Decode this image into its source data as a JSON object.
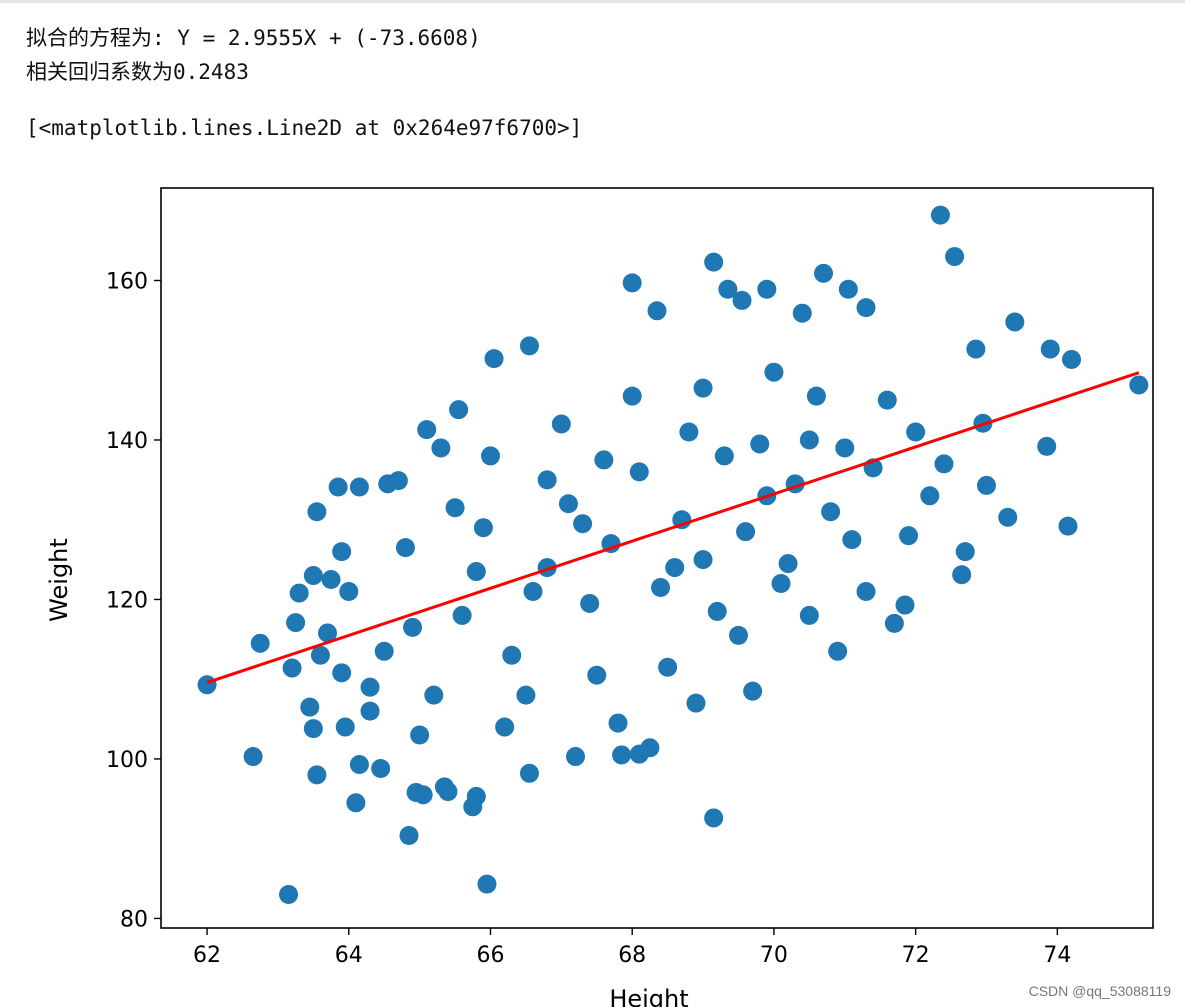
{
  "output": {
    "equation_line": "拟合的方程为: Y = 2.9555X + (-73.6608)",
    "corr_line": "相关回归系数为0.2483",
    "repr_line": "[<matplotlib.lines.Line2D at 0x264e97f6700>]"
  },
  "watermark": "CSDN @qq_53088119",
  "chart_data": {
    "type": "scatter",
    "xlabel": "Height",
    "ylabel": "Weight",
    "xlim": [
      61.35,
      75.35
    ],
    "ylim": [
      78.8,
      171.6
    ],
    "xticks": [
      62,
      64,
      66,
      68,
      70,
      72,
      74
    ],
    "yticks": [
      80,
      100,
      120,
      140,
      160
    ],
    "grid": false,
    "colors": {
      "points": "#1f77b4",
      "fit_line": "#ff0000"
    },
    "points": [
      [
        62.0,
        109.3
      ],
      [
        62.65,
        100.3
      ],
      [
        62.75,
        114.5
      ],
      [
        63.15,
        83.0
      ],
      [
        63.2,
        111.4
      ],
      [
        63.25,
        117.1
      ],
      [
        63.3,
        120.8
      ],
      [
        63.45,
        106.5
      ],
      [
        63.5,
        103.8
      ],
      [
        63.55,
        98.0
      ],
      [
        63.5,
        123.0
      ],
      [
        63.55,
        131.0
      ],
      [
        63.7,
        115.8
      ],
      [
        63.75,
        122.5
      ],
      [
        63.85,
        134.1
      ],
      [
        63.9,
        110.8
      ],
      [
        63.95,
        104.0
      ],
      [
        64.15,
        99.3
      ],
      [
        64.1,
        94.5
      ],
      [
        64.15,
        134.1
      ],
      [
        64.3,
        106.0
      ],
      [
        64.45,
        98.8
      ],
      [
        64.55,
        134.5
      ],
      [
        64.7,
        134.9
      ],
      [
        64.85,
        90.4
      ],
      [
        64.95,
        95.8
      ],
      [
        65.05,
        95.5
      ],
      [
        65.1,
        141.3
      ],
      [
        65.35,
        96.5
      ],
      [
        65.4,
        95.9
      ],
      [
        65.55,
        143.8
      ],
      [
        65.75,
        94.0
      ],
      [
        65.8,
        95.3
      ],
      [
        65.95,
        84.3
      ],
      [
        66.05,
        150.2
      ],
      [
        66.55,
        151.8
      ],
      [
        66.55,
        98.2
      ],
      [
        67.2,
        100.3
      ],
      [
        67.85,
        100.5
      ],
      [
        68.0,
        159.7
      ],
      [
        68.1,
        100.6
      ],
      [
        68.25,
        101.4
      ],
      [
        68.35,
        156.2
      ],
      [
        69.15,
        162.3
      ],
      [
        69.15,
        92.6
      ],
      [
        69.35,
        158.9
      ],
      [
        69.55,
        157.5
      ],
      [
        69.7,
        108.5
      ],
      [
        69.9,
        158.9
      ],
      [
        70.4,
        155.9
      ],
      [
        70.7,
        160.9
      ],
      [
        71.05,
        158.9
      ],
      [
        71.3,
        156.6
      ],
      [
        71.7,
        117.0
      ],
      [
        71.85,
        119.3
      ],
      [
        72.35,
        168.2
      ],
      [
        72.55,
        163.0
      ],
      [
        72.65,
        123.1
      ],
      [
        72.7,
        126.0
      ],
      [
        72.85,
        151.4
      ],
      [
        72.95,
        142.1
      ],
      [
        73.0,
        134.3
      ],
      [
        73.3,
        130.3
      ],
      [
        73.4,
        154.8
      ],
      [
        73.85,
        139.2
      ],
      [
        73.9,
        151.4
      ],
      [
        74.15,
        129.2
      ],
      [
        74.2,
        150.1
      ],
      [
        75.15,
        146.9
      ],
      [
        64.8,
        126.5
      ],
      [
        65.6,
        118.0
      ],
      [
        65.9,
        129.0
      ],
      [
        66.3,
        113.0
      ],
      [
        66.8,
        124.0
      ],
      [
        67.1,
        132.0
      ],
      [
        67.4,
        119.5
      ],
      [
        67.7,
        127.0
      ],
      [
        68.1,
        136.0
      ],
      [
        68.4,
        121.5
      ],
      [
        68.7,
        130.0
      ],
      [
        69.0,
        125.0
      ],
      [
        69.3,
        138.0
      ],
      [
        69.6,
        128.5
      ],
      [
        69.9,
        133.0
      ],
      [
        70.2,
        124.5
      ],
      [
        70.5,
        140.0
      ],
      [
        70.8,
        131.0
      ],
      [
        71.1,
        127.5
      ],
      [
        71.4,
        136.5
      ],
      [
        66.0,
        138.0
      ],
      [
        67.0,
        142.0
      ],
      [
        68.0,
        145.5
      ],
      [
        69.0,
        146.5
      ],
      [
        70.0,
        148.5
      ],
      [
        66.5,
        108.0
      ],
      [
        67.5,
        110.5
      ],
      [
        68.5,
        111.5
      ],
      [
        69.5,
        115.5
      ],
      [
        70.5,
        118.0
      ],
      [
        65.2,
        108.0
      ],
      [
        64.5,
        113.5
      ],
      [
        64.0,
        121.0
      ],
      [
        63.9,
        126.0
      ],
      [
        72.0,
        141.0
      ],
      [
        71.6,
        145.0
      ],
      [
        72.2,
        133.0
      ],
      [
        71.9,
        128.0
      ],
      [
        65.5,
        131.5
      ],
      [
        66.8,
        135.0
      ],
      [
        70.9,
        113.5
      ],
      [
        68.9,
        107.0
      ],
      [
        67.8,
        104.5
      ],
      [
        66.2,
        104.0
      ],
      [
        65.0,
        103.0
      ],
      [
        70.1,
        122.0
      ],
      [
        69.2,
        118.5
      ],
      [
        67.3,
        129.5
      ],
      [
        68.6,
        124.0
      ],
      [
        66.6,
        121.0
      ],
      [
        65.8,
        123.5
      ],
      [
        71.3,
        121.0
      ],
      [
        72.4,
        137.0
      ],
      [
        70.6,
        145.5
      ],
      [
        69.8,
        139.5
      ],
      [
        64.3,
        109.0
      ],
      [
        63.6,
        113.0
      ],
      [
        65.3,
        139.0
      ],
      [
        64.9,
        116.5
      ],
      [
        67.6,
        137.5
      ],
      [
        68.8,
        141.0
      ],
      [
        70.3,
        134.5
      ],
      [
        71.0,
        139.0
      ]
    ],
    "fit_line": {
      "slope": 2.9555,
      "intercept": -73.6608,
      "x_start": 62.0,
      "x_end": 75.15
    }
  }
}
